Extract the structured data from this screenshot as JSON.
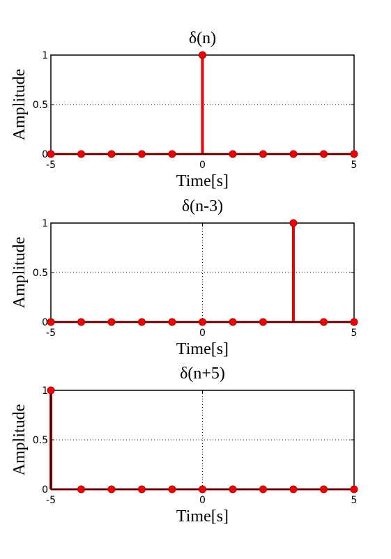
{
  "chart_data": [
    {
      "type": "stem",
      "title": "δ(n)",
      "xlabel": "Time[s]",
      "ylabel": "Amplitude",
      "x": [
        -5,
        -4,
        -3,
        -2,
        -1,
        0,
        1,
        2,
        3,
        4,
        5
      ],
      "values": [
        0,
        0,
        0,
        0,
        0,
        1,
        0,
        0,
        0,
        0,
        0
      ],
      "color": "#ee0000",
      "xlim": [
        -5,
        5
      ],
      "ylim": [
        0,
        1
      ],
      "xticks": [
        -5,
        0,
        5
      ],
      "yticks": [
        0,
        0.5,
        1
      ],
      "grid": true
    },
    {
      "type": "stem",
      "title": "δ(n-3)",
      "xlabel": "Time[s]",
      "ylabel": "Amplitude",
      "x": [
        -5,
        -4,
        -3,
        -2,
        -1,
        0,
        1,
        2,
        3,
        4,
        5
      ],
      "values": [
        0,
        0,
        0,
        0,
        0,
        0,
        0,
        0,
        1,
        0,
        0
      ],
      "color": "#ee0000",
      "xlim": [
        -5,
        5
      ],
      "ylim": [
        0,
        1
      ],
      "xticks": [
        -5,
        0,
        5
      ],
      "yticks": [
        0,
        0.5,
        1
      ],
      "grid": true
    },
    {
      "type": "stem",
      "title": "δ(n+5)",
      "xlabel": "Time[s]",
      "ylabel": "Amplitude",
      "x": [
        -5,
        -4,
        -3,
        -2,
        -1,
        0,
        1,
        2,
        3,
        4,
        5
      ],
      "values": [
        1,
        0,
        0,
        0,
        0,
        0,
        0,
        0,
        0,
        0,
        0
      ],
      "color": "#ee0000",
      "xlim": [
        -5,
        5
      ],
      "ylim": [
        0,
        1
      ],
      "xticks": [
        -5,
        0,
        5
      ],
      "yticks": [
        0,
        0.5,
        1
      ],
      "grid": true
    }
  ]
}
